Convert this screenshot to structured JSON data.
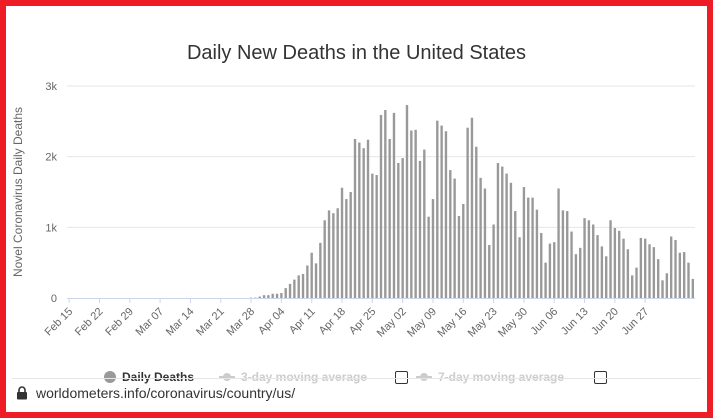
{
  "colors": {
    "frame": "#ee1c25",
    "bar": "#999999",
    "axis_text": "#666666",
    "inactive": "#cccccc",
    "grid": "#e6e6e6"
  },
  "chart_data": {
    "type": "bar",
    "title": "Daily New Deaths in the United States",
    "xlabel": "",
    "ylabel": "Novel Coronavirus Daily Deaths",
    "ylim": [
      0,
      3000
    ],
    "yticks": [
      "0",
      "1k",
      "2k",
      "3k"
    ],
    "ytick_values": [
      0,
      1000,
      2000,
      3000
    ],
    "x_tick_labels": [
      "Feb 15",
      "Feb 22",
      "Feb 29",
      "Mar 07",
      "Mar 14",
      "Mar 21",
      "Mar 28",
      "Apr 04",
      "Apr 11",
      "Apr 18",
      "Apr 25",
      "May 02",
      "May 09",
      "May 16",
      "May 23",
      "May 30",
      "Jun 06",
      "Jun 13",
      "Jun 20",
      "Jun 27"
    ],
    "x_start": "Feb 15",
    "x_end": "Jun 28",
    "grid": true,
    "legend_position": "bottom",
    "series": [
      {
        "name": "Daily Deaths",
        "values": [
          0,
          0,
          0,
          0,
          0,
          0,
          0,
          0,
          0,
          0,
          0,
          0,
          0,
          0,
          0,
          0,
          0,
          0,
          0,
          0,
          0,
          0,
          0,
          0,
          0,
          0,
          0,
          0,
          0,
          0,
          0,
          0,
          0,
          0,
          0,
          0,
          0,
          0,
          0,
          0,
          0,
          0,
          5,
          5,
          20,
          40,
          40,
          60,
          60,
          70,
          140,
          200,
          260,
          320,
          340,
          460,
          640,
          490,
          780,
          1100,
          1240,
          1200,
          1270,
          1560,
          1400,
          1500,
          2250,
          2200,
          2120,
          2240,
          1760,
          1740,
          2590,
          2660,
          2250,
          2620,
          1910,
          1980,
          2730,
          2370,
          2380,
          1940,
          2100,
          1150,
          1400,
          2510,
          2440,
          2360,
          1810,
          1690,
          1160,
          1330,
          2410,
          2550,
          2140,
          1700,
          1550,
          750,
          1040,
          1910,
          1860,
          1760,
          1630,
          1230,
          860,
          1570,
          1420,
          1420,
          1250,
          920,
          500,
          770,
          790,
          1550,
          1240,
          1230,
          940,
          620,
          710,
          1130,
          1100,
          1040,
          890,
          730,
          590,
          1100,
          990,
          950,
          840,
          690,
          320,
          430,
          850,
          840,
          760,
          720,
          550,
          250,
          350,
          870,
          820,
          640,
          650,
          500,
          270
        ]
      },
      {
        "name": "3-day moving average",
        "values": [],
        "visible": false
      },
      {
        "name": "7-day moving average",
        "values": [],
        "visible": false
      }
    ]
  },
  "legend": {
    "daily": "Daily Deaths",
    "ma3": "3-day moving average",
    "ma7": "7-day moving average"
  },
  "footer": {
    "url": "worldometers.info/coronavirus/country/us/",
    "icon": "lock-icon"
  }
}
